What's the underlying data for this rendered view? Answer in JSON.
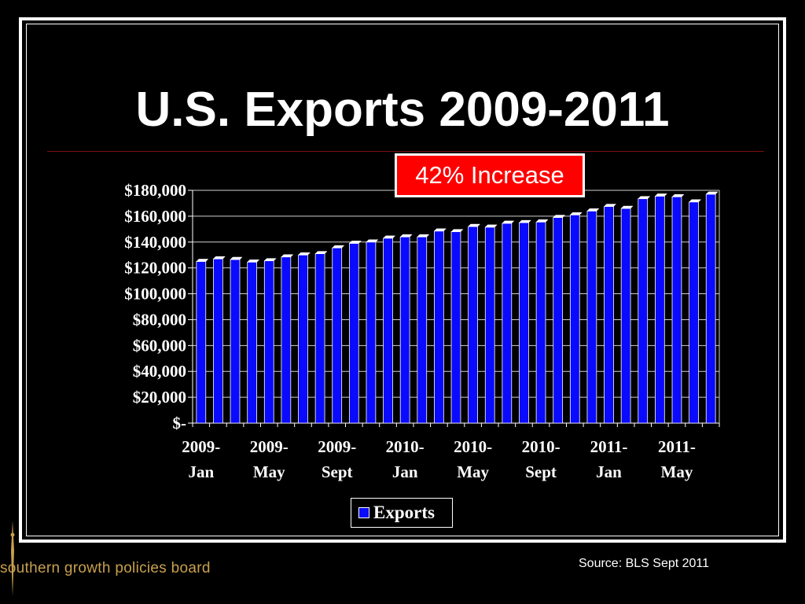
{
  "slide": {
    "title": "U.S. Exports 2009-2011",
    "callout": "42% Increase",
    "source": "Source: BLS Sept 2011",
    "org_name": "southern growth policies board"
  },
  "colors": {
    "background": "#000000",
    "bar": "#0a0aff",
    "callout_bg": "#ff0000",
    "org_text": "#c8a04e"
  },
  "chart_data": {
    "type": "bar",
    "title": "",
    "xlabel": "",
    "ylabel": "",
    "ylim": [
      0,
      180000
    ],
    "y_ticks": [
      "$-",
      "$20,000",
      "$40,000",
      "$60,000",
      "$80,000",
      "$100,000",
      "$120,000",
      "$140,000",
      "$160,000",
      "$180,000"
    ],
    "x_tick_labels": [
      {
        "line1": "2009-",
        "line2": "Jan"
      },
      {
        "line1": "2009-",
        "line2": "May"
      },
      {
        "line1": "2009-",
        "line2": "Sept"
      },
      {
        "line1": "2010-",
        "line2": "Jan"
      },
      {
        "line1": "2010-",
        "line2": "May"
      },
      {
        "line1": "2010-",
        "line2": "Sept"
      },
      {
        "line1": "2011-",
        "line2": "Jan"
      },
      {
        "line1": "2011-",
        "line2": "May"
      }
    ],
    "x_tick_every": 4,
    "grid": true,
    "legend": "bottom-center",
    "series": [
      {
        "name": "Exports",
        "values": [
          125000,
          127000,
          126500,
          124500,
          125500,
          128500,
          130000,
          131000,
          135500,
          139000,
          140000,
          143000,
          144000,
          144000,
          148500,
          148000,
          152000,
          151500,
          154500,
          155000,
          155500,
          159000,
          161000,
          164000,
          167500,
          166000,
          173500,
          175500,
          175000,
          171000,
          177000
        ]
      }
    ]
  }
}
